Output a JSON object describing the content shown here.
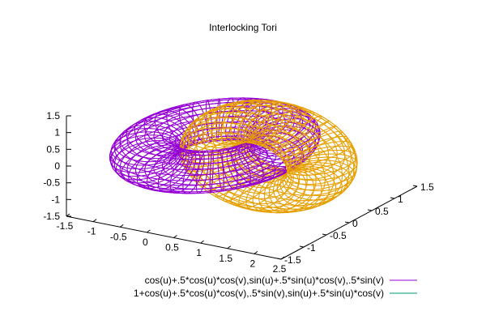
{
  "chart_data": {
    "type": "surface-3d",
    "title": "Interlocking Tori",
    "x_ticks": [
      "-1.5",
      "-1",
      "-0.5",
      "0",
      "0.5",
      "1",
      "1.5",
      "2",
      "2.5"
    ],
    "y_ticks": [
      "-1.5",
      "-1",
      "-0.5",
      "0",
      "0.5",
      "1",
      "1.5"
    ],
    "z_ticks": [
      "-1.5",
      "-1",
      "-0.5",
      "0",
      "0.5",
      "1",
      "1.5"
    ],
    "xlim": [
      -1.5,
      2.5
    ],
    "ylim": [
      -1.5,
      1.5
    ],
    "zlim": [
      -1.5,
      1.5
    ],
    "u_range": [
      -3.14159,
      3.14159
    ],
    "v_range": [
      -3.14159,
      3.14159
    ],
    "series": [
      {
        "name": "cos(u)+.5*cos(u)*cos(v),sin(u)+.5*sin(u)*cos(v),.5*sin(v)",
        "color": "#9400d3",
        "torus": {
          "center": [
            0,
            0,
            0
          ],
          "major_radius": 1,
          "minor_radius": 0.5,
          "plane": "xy"
        }
      },
      {
        "name": "1+cos(u)+.5*cos(u)*cos(v),.5*sin(v),sin(u)+.5*sin(u)*cos(v)",
        "color": "#009e73",
        "mesh_color": "#e69f00",
        "torus": {
          "center": [
            1,
            0,
            0
          ],
          "major_radius": 1,
          "minor_radius": 0.5,
          "plane": "xz"
        }
      }
    ]
  }
}
